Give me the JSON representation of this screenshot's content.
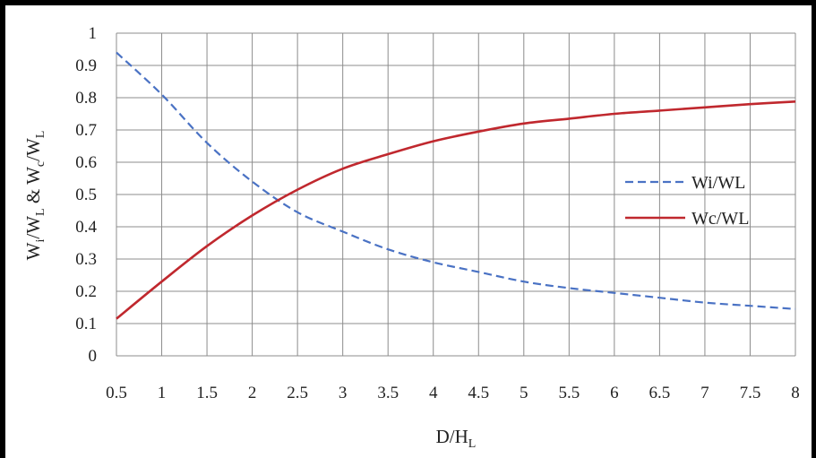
{
  "chart_data": {
    "type": "line",
    "xlabel": "D/H",
    "xlabel_sub": "L",
    "ylabel_parts": [
      {
        "t": "W",
        "sub": false
      },
      {
        "t": "i",
        "sub": true
      },
      {
        "t": "/W",
        "sub": false
      },
      {
        "t": "L",
        "sub": true
      },
      {
        "t": " & W",
        "sub": false
      },
      {
        "t": "c",
        "sub": true
      },
      {
        "t": "/W",
        "sub": false
      },
      {
        "t": "L",
        "sub": true
      }
    ],
    "xlim": [
      0.5,
      8
    ],
    "ylim": [
      0,
      1
    ],
    "x_ticks": [
      "0.5",
      "1",
      "1.5",
      "2",
      "2.5",
      "3",
      "3.5",
      "4",
      "4.5",
      "5",
      "5.5",
      "6",
      "6.5",
      "7",
      "7.5",
      "8"
    ],
    "y_ticks": [
      "0",
      "0.1",
      "0.2",
      "0.3",
      "0.4",
      "0.5",
      "0.6",
      "0.7",
      "0.8",
      "0.9",
      "1"
    ],
    "grid": true,
    "legend_position": "right",
    "series": [
      {
        "name": "Wi/WL",
        "style": "dashed",
        "color": "#4a72c4",
        "x": [
          0.5,
          1,
          1.5,
          2,
          2.5,
          3,
          3.5,
          4,
          4.5,
          5,
          5.5,
          6,
          6.5,
          7,
          7.5,
          8
        ],
        "y": [
          0.94,
          0.81,
          0.66,
          0.54,
          0.445,
          0.385,
          0.33,
          0.29,
          0.26,
          0.23,
          0.21,
          0.195,
          0.18,
          0.165,
          0.155,
          0.145
        ]
      },
      {
        "name": "Wc/WL",
        "style": "solid",
        "color": "#c0282e",
        "x": [
          0.5,
          1,
          1.5,
          2,
          2.5,
          3,
          3.5,
          4,
          4.5,
          5,
          5.5,
          6,
          6.5,
          7,
          7.5,
          8
        ],
        "y": [
          0.115,
          0.23,
          0.34,
          0.435,
          0.515,
          0.58,
          0.625,
          0.665,
          0.695,
          0.72,
          0.735,
          0.75,
          0.76,
          0.77,
          0.78,
          0.788
        ]
      }
    ]
  }
}
